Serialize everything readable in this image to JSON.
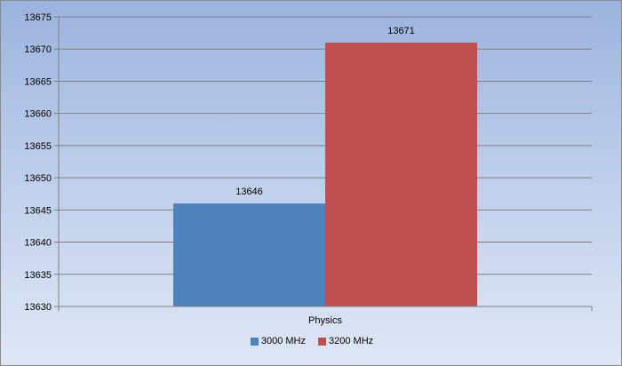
{
  "chart_data": {
    "type": "bar",
    "categories": [
      "Physics"
    ],
    "series": [
      {
        "name": "3000 MHz",
        "values": [
          13646
        ],
        "color": "#4f81bd"
      },
      {
        "name": "3200 MHz",
        "values": [
          13671
        ],
        "color": "#c0504d"
      }
    ],
    "ylim": [
      13630,
      13675
    ],
    "yticks": [
      13630,
      13635,
      13640,
      13645,
      13650,
      13655,
      13660,
      13665,
      13670,
      13675
    ],
    "grid": true,
    "legend_position": "bottom"
  }
}
